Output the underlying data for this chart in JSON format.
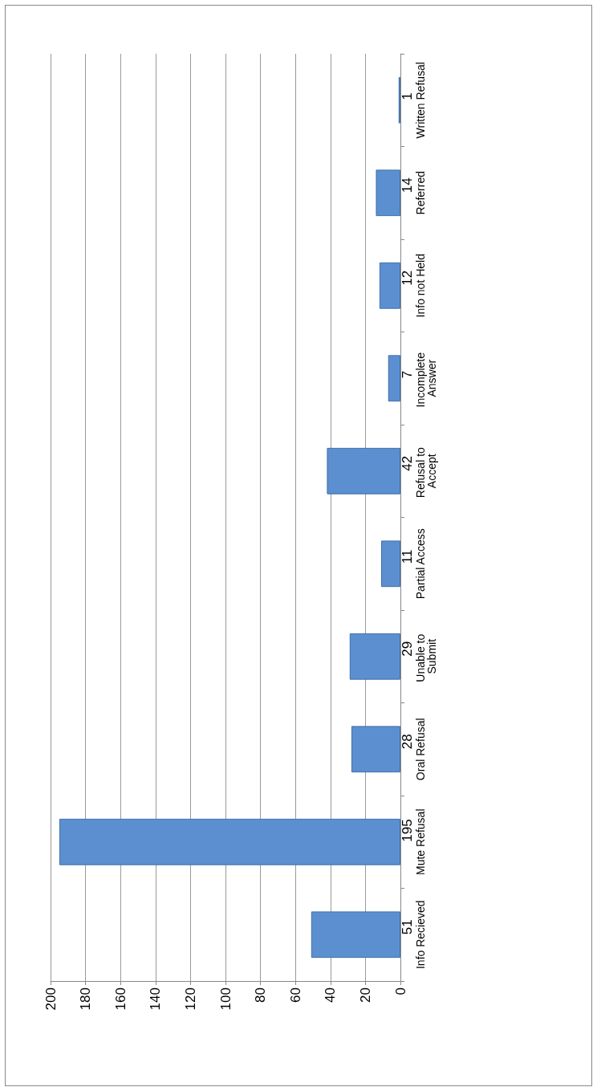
{
  "chart_data": {
    "type": "bar",
    "orientation": "horizontal",
    "categories": [
      "Written Refusal",
      "Referred",
      "Info not Held",
      "Incomplete Answer",
      "Refusal to Accept",
      "Partial Access",
      "Unable to Submit",
      "Oral Refusal",
      "Mute Refusal",
      "Info Recieved"
    ],
    "values": [
      1,
      14,
      12,
      7,
      42,
      11,
      29,
      28,
      195,
      51
    ],
    "color": "#5b8fd0",
    "xlim": [
      200,
      0
    ],
    "xticks": [
      0,
      20,
      40,
      60,
      80,
      100,
      120,
      140,
      160,
      180,
      200
    ],
    "grid": "x",
    "data_labels": true
  }
}
